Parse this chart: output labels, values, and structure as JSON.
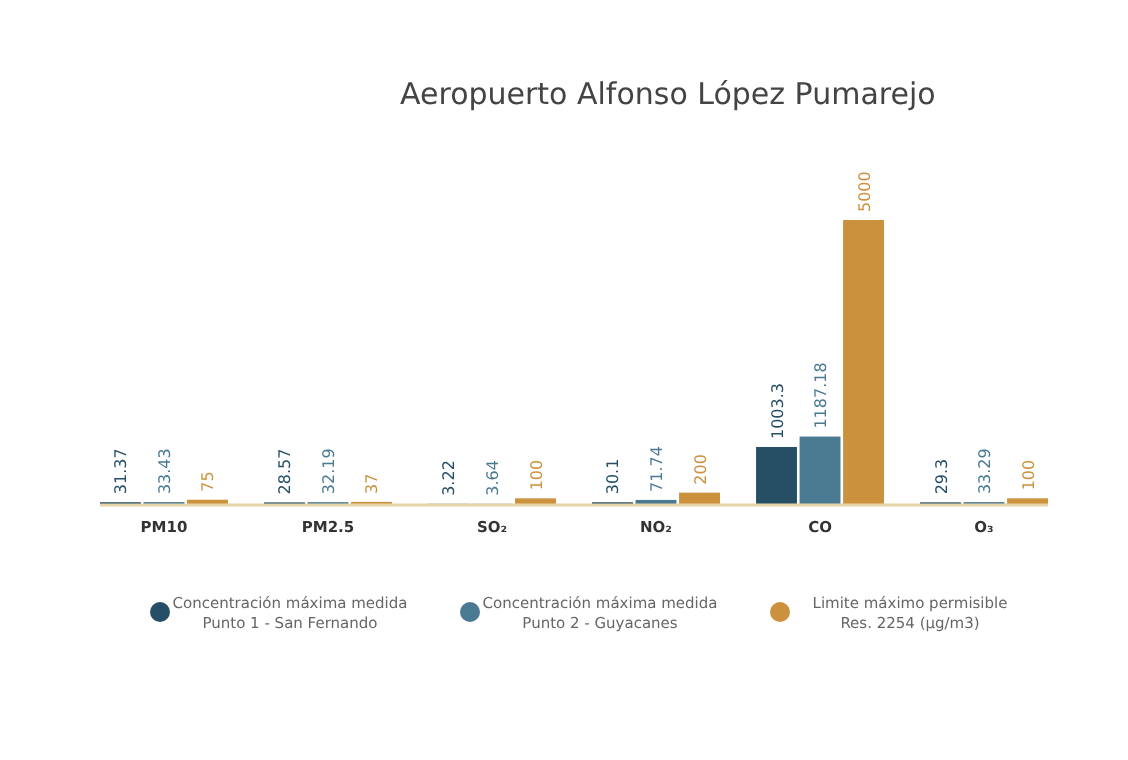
{
  "chart_data": {
    "type": "bar",
    "title": "Aeropuerto Alfonso López Pumarejo",
    "categories": [
      "PM10",
      "PM2.5",
      "SO₂",
      "NO₂",
      "CO",
      "O₃"
    ],
    "series": [
      {
        "name": "Concentración máxima medida\nPunto 1 - San Fernando",
        "color": "#264f66",
        "values": [
          31.37,
          28.57,
          3.22,
          30.1,
          1003.3,
          29.3
        ]
      },
      {
        "name": "Concentración máxima medida\nPunto 2 - Guyacanes",
        "color": "#4a7a92",
        "values": [
          33.43,
          32.19,
          3.64,
          71.74,
          1187.18,
          33.29
        ]
      },
      {
        "name": "Limite máximo permisible\nRes. 2254 (µg/m3)",
        "color": "#cc913c",
        "values": [
          75,
          37,
          100,
          200,
          5000,
          100
        ]
      }
    ],
    "data_labels": true,
    "legend": "bottom",
    "grid": false
  }
}
